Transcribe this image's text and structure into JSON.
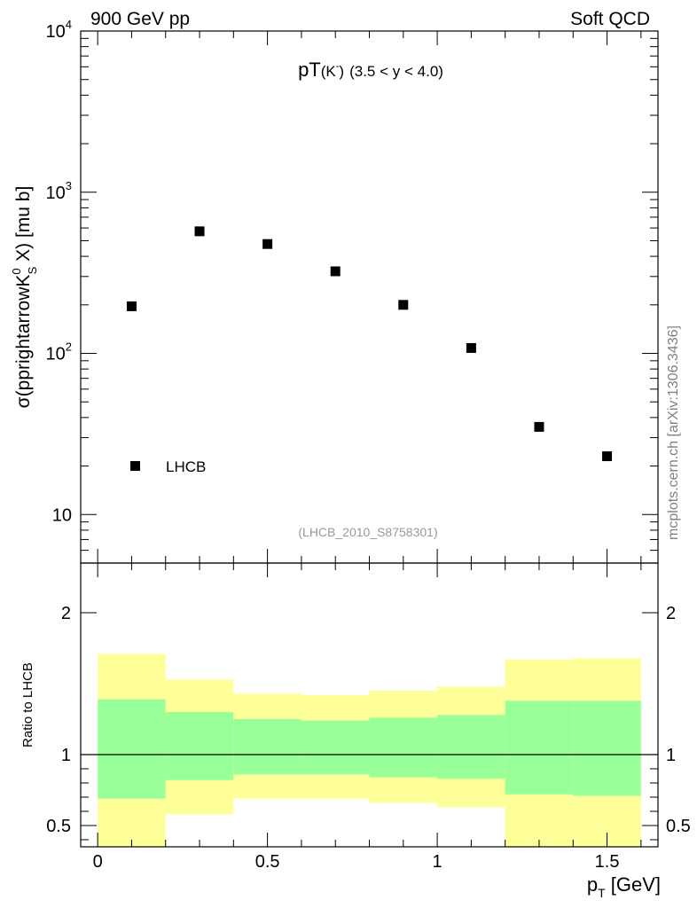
{
  "header": {
    "left": "900 GeV pp",
    "right": "Soft QCD"
  },
  "side_label": "mcplots.cern.ch [arXiv:1306.3436]",
  "chart_data": [
    {
      "type": "scatter",
      "panel": "main",
      "title_main": "pT",
      "title_particle": "(K",
      "title_particle_sup": "-",
      "title_particle_close": ")",
      "title_range": "(3.5 < y < 4.0)",
      "ylabel": {
        "prefix": "σ(pprightarrowK",
        "sup": "0",
        "sub": "S",
        "suffix": " X) [mu b]"
      },
      "yscale": "log",
      "ylim": [
        5,
        10000
      ],
      "xlim": [
        -0.05,
        1.65
      ],
      "y_ticks": [
        {
          "value": 10,
          "base": "10",
          "exp": ""
        },
        {
          "value": 100,
          "base": "10",
          "exp": "2"
        },
        {
          "value": 1000,
          "base": "10",
          "exp": "3"
        },
        {
          "value": 10000,
          "base": "10",
          "exp": "4"
        }
      ],
      "series": [
        {
          "name": "LHCB",
          "marker": "square",
          "color": "#000000",
          "x": [
            0.1,
            0.3,
            0.5,
            0.7,
            0.9,
            1.1,
            1.3,
            1.5
          ],
          "y": [
            196,
            572,
            477,
            323,
            200,
            108,
            35,
            23
          ]
        }
      ],
      "legend": {
        "label": "LHCB",
        "position": "bottom-left"
      },
      "annotation": "(LHCB_2010_S8758301)"
    },
    {
      "type": "area",
      "panel": "ratio",
      "ylabel": "Ratio to LHCB",
      "xlabel": {
        "base": "p",
        "sub": "T",
        "suffix": " [GeV]"
      },
      "xlim": [
        -0.05,
        1.65
      ],
      "ylim": [
        0.35,
        2.35
      ],
      "y_ticks": [
        {
          "value": 0.5,
          "label": "0.5"
        },
        {
          "value": 1,
          "label": "1"
        },
        {
          "value": 2,
          "label": "2"
        }
      ],
      "x_ticks": [
        {
          "value": 0,
          "label": "0"
        },
        {
          "value": 0.5,
          "label": "0.5"
        },
        {
          "value": 1,
          "label": "1"
        },
        {
          "value": 1.5,
          "label": "1.5"
        }
      ],
      "reference_line": 1,
      "bins": [
        {
          "lo": 0.0,
          "hi": 0.2,
          "yellow": [
            0.35,
            1.71
          ],
          "green": [
            0.69,
            1.39
          ]
        },
        {
          "lo": 0.2,
          "hi": 0.4,
          "yellow": [
            0.58,
            1.53
          ],
          "green": [
            0.82,
            1.3
          ]
        },
        {
          "lo": 0.4,
          "hi": 0.6,
          "yellow": [
            0.69,
            1.43
          ],
          "green": [
            0.86,
            1.25
          ]
        },
        {
          "lo": 0.6,
          "hi": 0.8,
          "yellow": [
            0.69,
            1.42
          ],
          "green": [
            0.86,
            1.24
          ]
        },
        {
          "lo": 0.8,
          "hi": 1.0,
          "yellow": [
            0.66,
            1.45
          ],
          "green": [
            0.84,
            1.26
          ]
        },
        {
          "lo": 1.0,
          "hi": 1.2,
          "yellow": [
            0.63,
            1.48
          ],
          "green": [
            0.83,
            1.28
          ]
        },
        {
          "lo": 1.2,
          "hi": 1.4,
          "yellow": [
            0.35,
            1.67
          ],
          "green": [
            0.72,
            1.38
          ]
        },
        {
          "lo": 1.4,
          "hi": 1.6,
          "yellow": [
            0.35,
            1.68
          ],
          "green": [
            0.71,
            1.38
          ]
        }
      ],
      "band_colors": {
        "yellow": "#ffff99",
        "green": "#99ff99"
      }
    }
  ]
}
